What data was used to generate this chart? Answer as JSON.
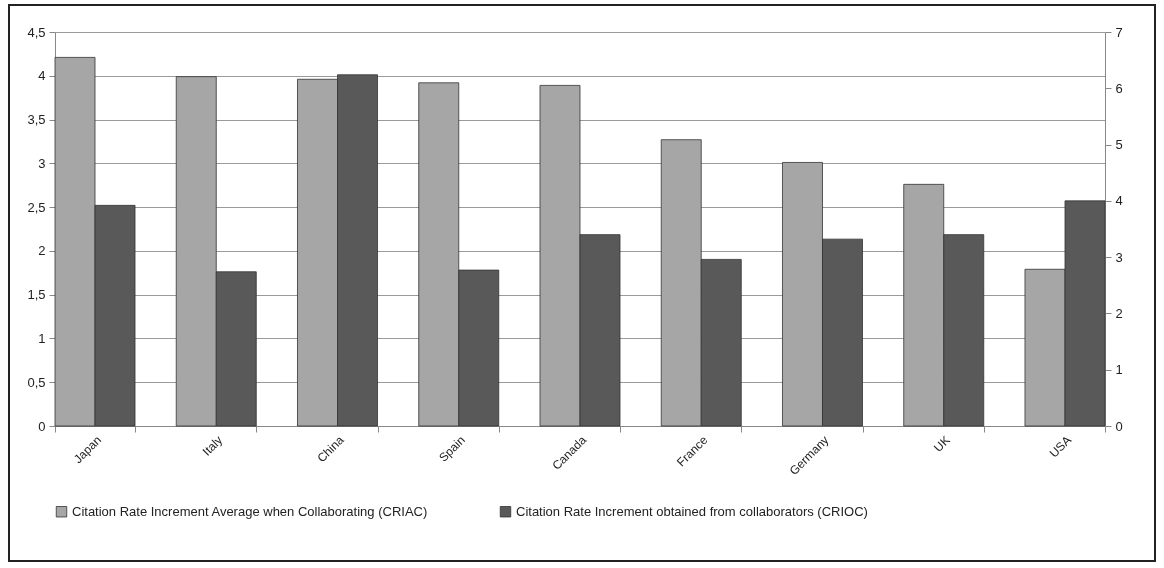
{
  "chart_data": {
    "type": "bar",
    "categories": [
      "Japan",
      "Italy",
      "China",
      "Spain",
      "Canada",
      "France",
      "Germany",
      "UK",
      "USA"
    ],
    "series": [
      {
        "name": "Citation Rate Increment Average when Collaborating (CRIAC)",
        "color": "#a6a6a6",
        "values": [
          4.21,
          3.99,
          3.96,
          3.92,
          3.89,
          3.27,
          3.01,
          2.76,
          1.79
        ]
      },
      {
        "name": "Citation Rate Increment obtained from collaborators (CRIOC)",
        "color": "#595959",
        "axis": "y2",
        "values": [
          3.92,
          2.74,
          6.24,
          2.77,
          3.4,
          2.96,
          3.32,
          3.4,
          4.0
        ]
      }
    ],
    "ylim": [
      0,
      4.5
    ],
    "yticks": [
      0,
      {
        "value": 0.5,
        "label": "0,5"
      },
      1,
      {
        "value": 1.5,
        "label": "1,5"
      },
      2,
      {
        "value": 2.5,
        "label": "2,5"
      },
      3,
      {
        "value": 3.5,
        "label": "3,5"
      },
      4,
      {
        "value": 4.5,
        "label": "4,5"
      }
    ],
    "y2lim": [
      0,
      7
    ],
    "y2ticks": [
      0,
      1,
      2,
      3,
      4,
      5,
      6,
      7
    ],
    "grid": "y",
    "legend": "bottom"
  }
}
